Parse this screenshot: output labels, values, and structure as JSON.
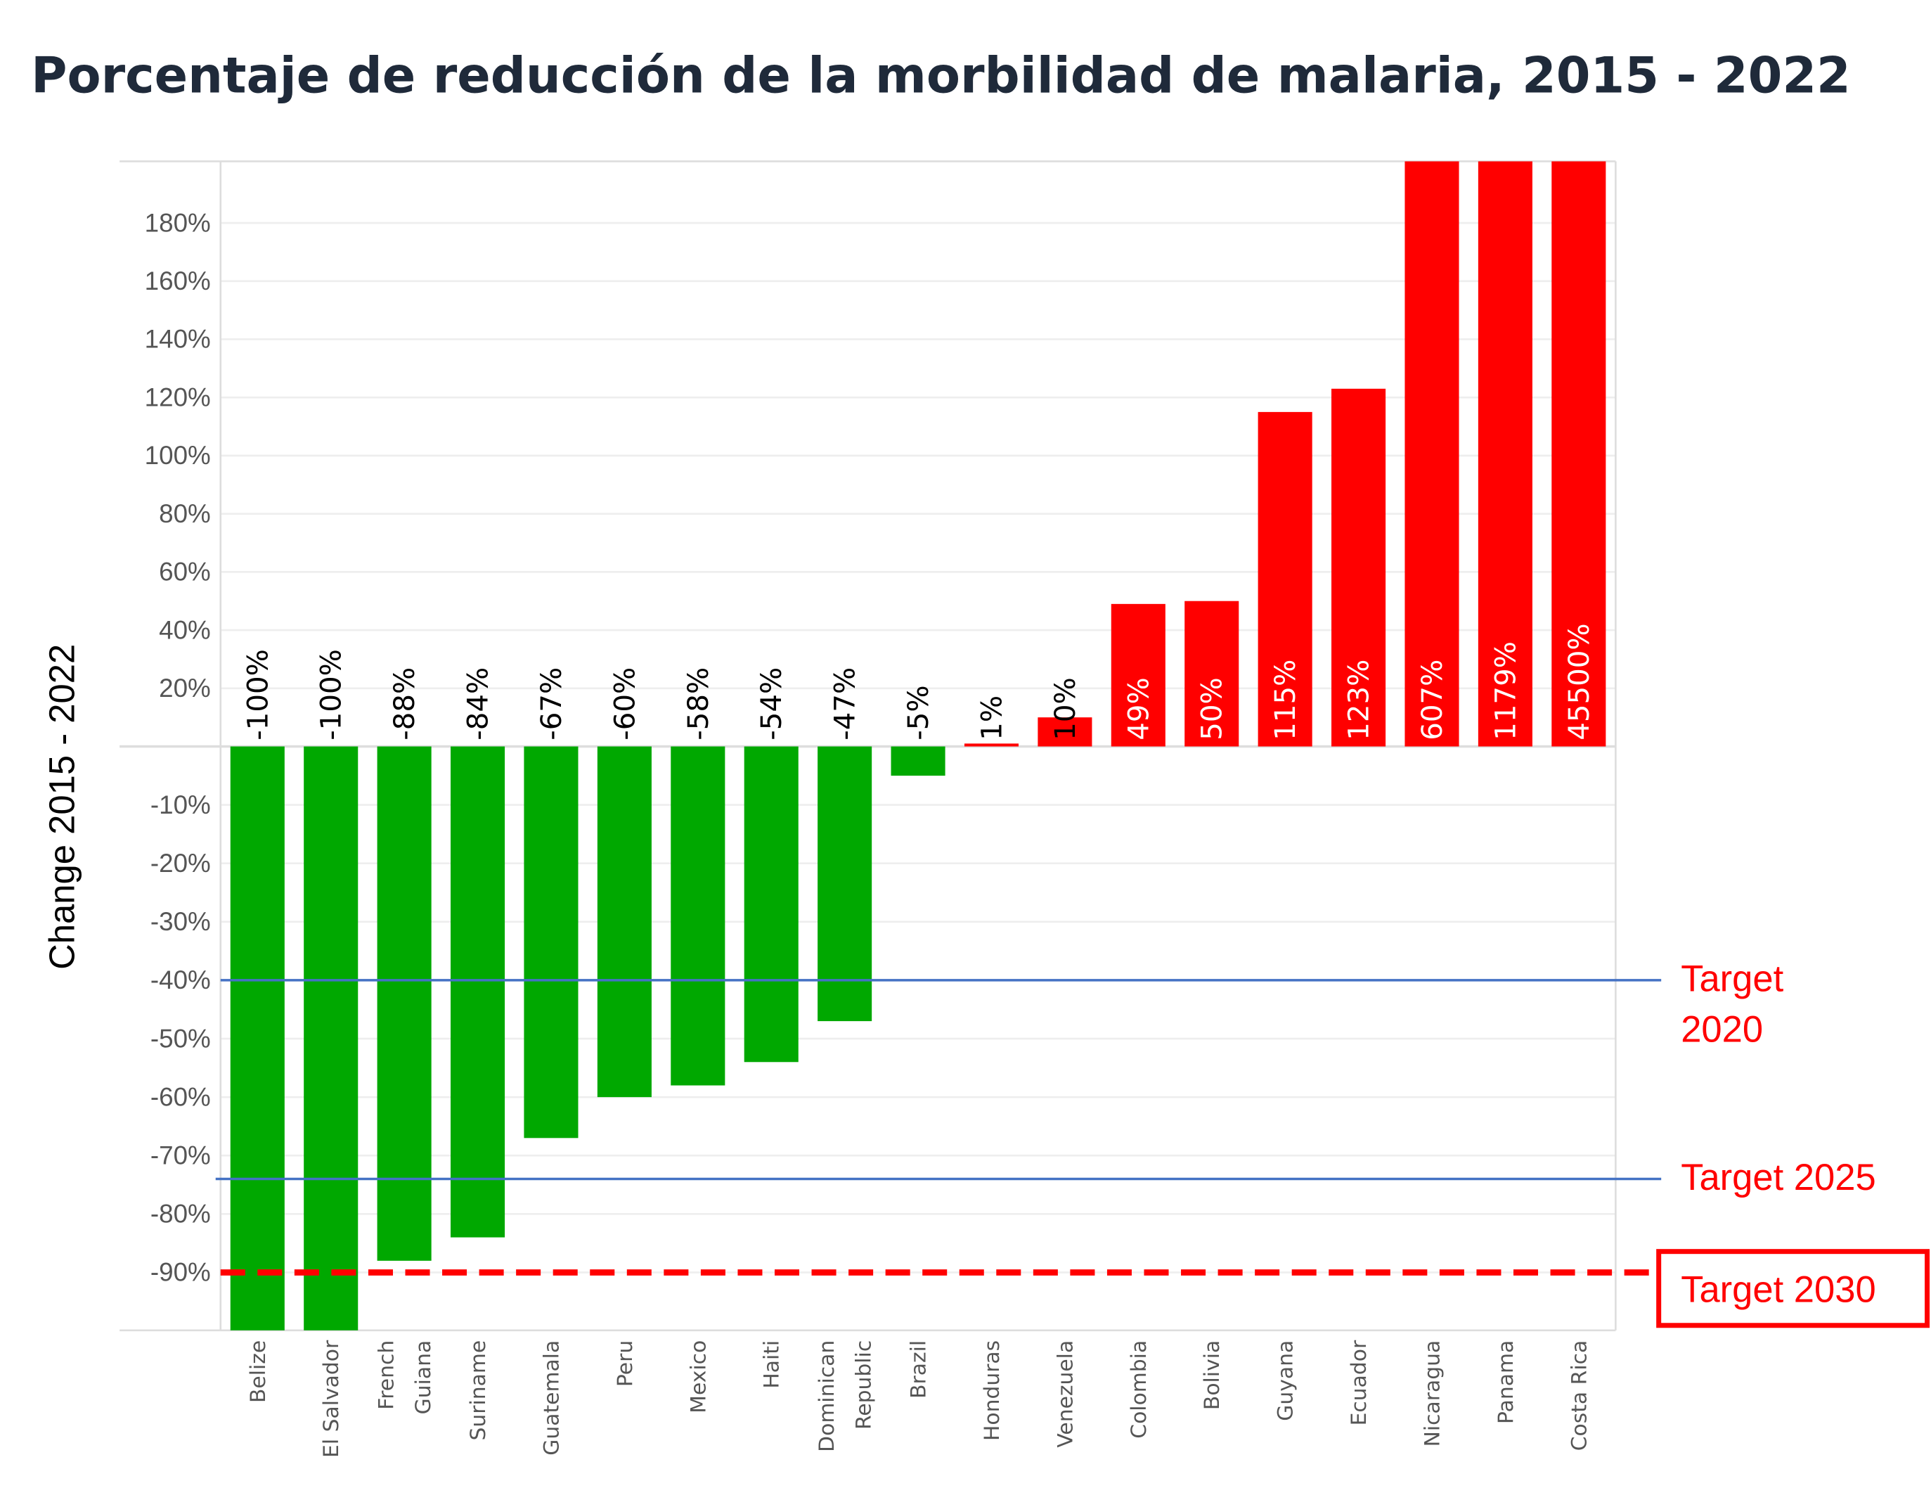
{
  "chart_data": {
    "type": "bar",
    "title": "Porcentaje de reducción de la morbilidad de malaria, 2015 - 2022",
    "ylabel": "Change 2015 - 2022",
    "xlabel": "",
    "ylim": [
      -100,
      200
    ],
    "y_scale_note": "positive side ticks every 20%, negative side ticks every 10% at equal spacing",
    "y_ticks_positive": [
      20,
      40,
      60,
      80,
      100,
      120,
      140,
      160,
      180
    ],
    "y_ticks_negative": [
      -10,
      -20,
      -30,
      -40,
      -50,
      -60,
      -70,
      -80,
      -90
    ],
    "grid": true,
    "categories": [
      "Belize",
      "El Salvador",
      "French Guiana",
      "Suriname",
      "Guatemala",
      "Peru",
      "Mexico",
      "Haiti",
      "Dominican Republic",
      "Brazil",
      "Honduras",
      "Venezuela",
      "Colombia",
      "Bolivia",
      "Guyana",
      "Ecuador",
      "Nicaragua",
      "Panama",
      "Costa Rica"
    ],
    "category_lines": [
      [
        "Belize"
      ],
      [
        "El Salvador"
      ],
      [
        "French",
        "Guiana"
      ],
      [
        "Suriname"
      ],
      [
        "Guatemala"
      ],
      [
        "Peru"
      ],
      [
        "Mexico"
      ],
      [
        "Haiti"
      ],
      [
        "Dominican",
        "Republic"
      ],
      [
        "Brazil"
      ],
      [
        "Honduras"
      ],
      [
        "Venezuela"
      ],
      [
        "Colombia"
      ],
      [
        "Bolivia"
      ],
      [
        "Guyana"
      ],
      [
        "Ecuador"
      ],
      [
        "Nicaragua"
      ],
      [
        "Panama"
      ],
      [
        "Costa Rica"
      ]
    ],
    "values": [
      -100,
      -100,
      -88,
      -84,
      -67,
      -60,
      -58,
      -54,
      -47,
      -5,
      1,
      10,
      49,
      50,
      115,
      123,
      607,
      1179,
      45500
    ],
    "data_labels": [
      "-100%",
      "-100%",
      "-88%",
      "-84%",
      "-67%",
      "-60%",
      "-58%",
      "-54%",
      "-47%",
      "-5%",
      "1%",
      "10%",
      "49%",
      "50%",
      "115%",
      "123%",
      "607%",
      "1179%",
      "45500%"
    ],
    "colors": {
      "negative": "#00a800",
      "positive": "#ff0000",
      "target_line": "#4472c4",
      "target_2030": "#ff0000"
    },
    "reference_lines": [
      {
        "label": "Target 2020",
        "label_lines": [
          "Target",
          "2020"
        ],
        "value": -40,
        "style": "solid"
      },
      {
        "label": "Target 2025",
        "label_lines": [
          "Target 2025"
        ],
        "value": -74,
        "style": "solid"
      },
      {
        "label": "Target 2030",
        "label_lines": [
          "Target 2030"
        ],
        "value": -90,
        "style": "dashed",
        "boxed": true
      }
    ]
  }
}
